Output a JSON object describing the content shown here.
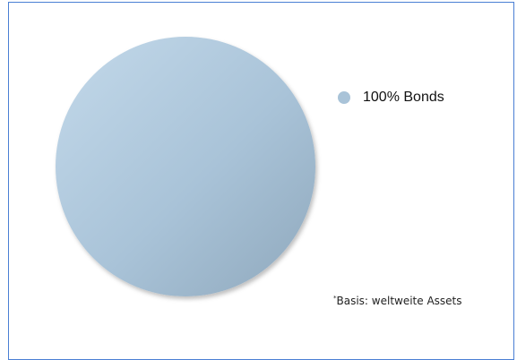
{
  "chart_data": {
    "type": "pie",
    "title": "",
    "slices": [
      {
        "label": "100% Bonds",
        "value": 100,
        "color": "#a9c3d8"
      }
    ],
    "legend": "right",
    "footnote": {
      "marker": "*",
      "text": "Basis: weltweite Assets"
    }
  }
}
